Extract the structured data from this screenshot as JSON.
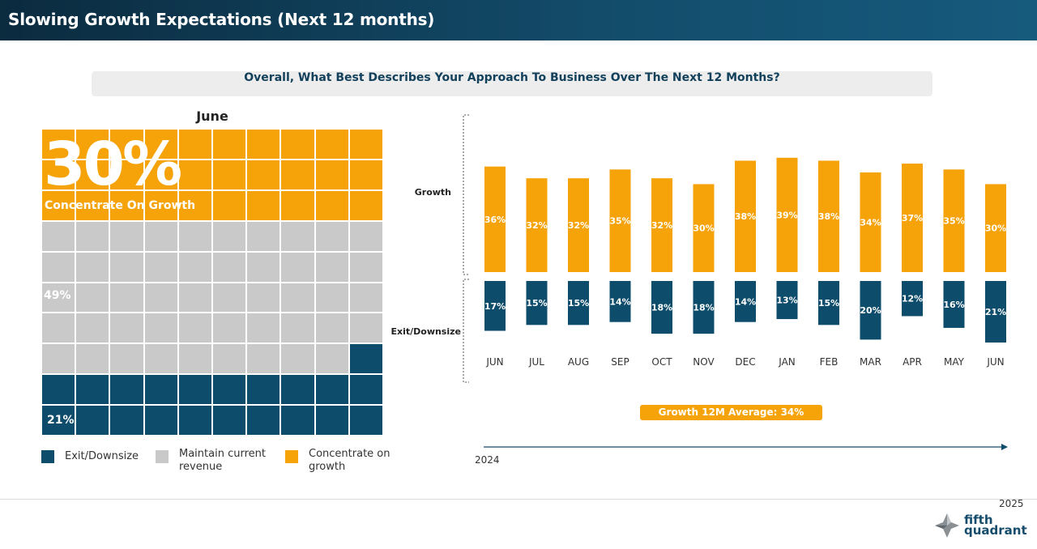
{
  "header": {
    "title": "Slowing Growth Expectations (Next 12 months)"
  },
  "question": "Overall, What Best Describes Your Approach To Business Over The Next 12 Months?",
  "waffle": {
    "title": "June",
    "growth_pct": "30%",
    "growth_label": "Concentrate On Growth",
    "maintain_pct": "49%",
    "exit_pct": "21%",
    "growth_cells": 30,
    "maintain_cells": 49,
    "exit_cells": 21
  },
  "legend": {
    "exit": "Exit/Downsize",
    "maintain": "Maintain current revenue",
    "growth": "Concentrate on growth"
  },
  "colors": {
    "growth": "#f6a30a",
    "maintain": "#c9c9c9",
    "exit": "#0e4c6c"
  },
  "chart_data": {
    "type": "bar",
    "title": "Overall, What Best Describes Your Approach To Business Over The Next 12 Months?",
    "categories": [
      "JUN",
      "JUL",
      "AUG",
      "SEP",
      "OCT",
      "NOV",
      "DEC",
      "JAN",
      "FEB",
      "MAR",
      "APR",
      "MAY",
      "JUN"
    ],
    "series": [
      {
        "name": "Growth",
        "values": [
          36,
          32,
          32,
          35,
          32,
          30,
          38,
          39,
          38,
          34,
          37,
          35,
          30
        ]
      },
      {
        "name": "Exit/Downsize",
        "values": [
          17,
          15,
          15,
          14,
          18,
          18,
          14,
          13,
          15,
          20,
          12,
          16,
          21
        ]
      }
    ],
    "growth_label": "Growth",
    "exit_label": "Exit/Downsize",
    "average_label": "Growth 12M Average: 34%",
    "year_start": "2024",
    "year_end": "2025"
  },
  "brand": {
    "line1": "fifth",
    "line2": "quadrant"
  }
}
